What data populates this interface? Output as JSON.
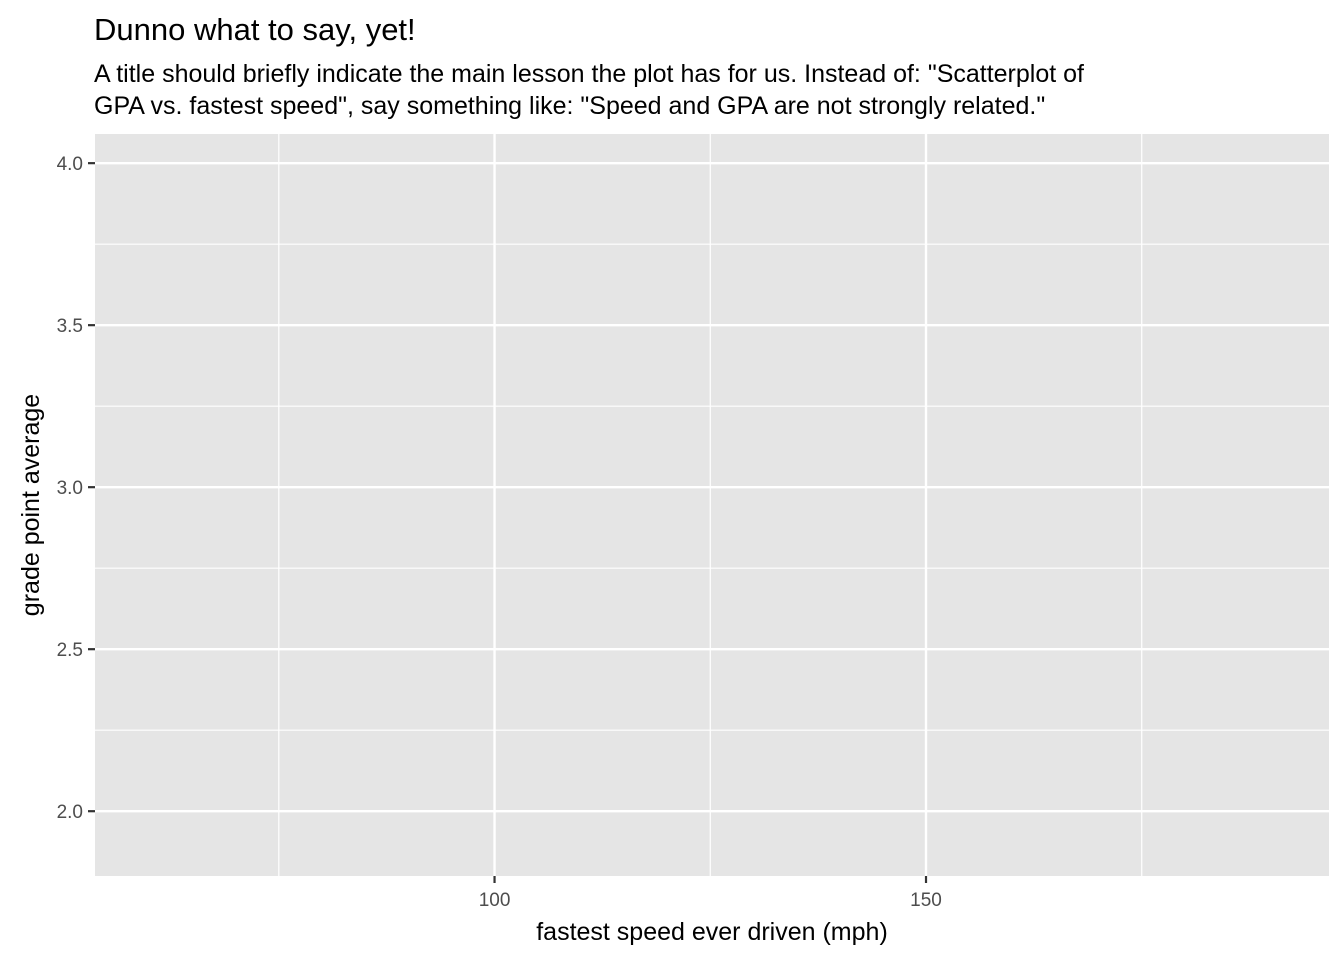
{
  "chart_data": {
    "type": "scatter",
    "title": "Dunno what to say, yet!",
    "subtitle": [
      "A title should briefly indicate the main lesson the plot has for us.  Instead of: \"Scatterplot of",
      "GPA vs. fastest speed\", say something like: \"Speed and GPA are not strongly related.\""
    ],
    "xlabel": "fastest speed ever driven (mph)",
    "ylabel": "grade point average",
    "xlim": [
      53.7,
      196.7
    ],
    "ylim": [
      1.8,
      4.09
    ],
    "x_major_ticks": [
      100,
      150
    ],
    "x_major_tick_labels": [
      "100",
      "150"
    ],
    "x_minor_gridlines": [
      75,
      125,
      175
    ],
    "y_major_ticks": [
      2.0,
      2.5,
      3.0,
      3.5,
      4.0
    ],
    "y_major_tick_labels": [
      "2.0",
      "2.5",
      "3.0",
      "3.5",
      "4.0"
    ],
    "y_minor_gridlines": [
      2.25,
      2.75,
      3.25,
      3.75
    ],
    "grid": true,
    "points": [],
    "colors": {
      "panel_background": "#e5e5e5",
      "gridline": "#ffffff",
      "tick_label": "#4d4d4d",
      "tick_mark": "#333333"
    }
  }
}
